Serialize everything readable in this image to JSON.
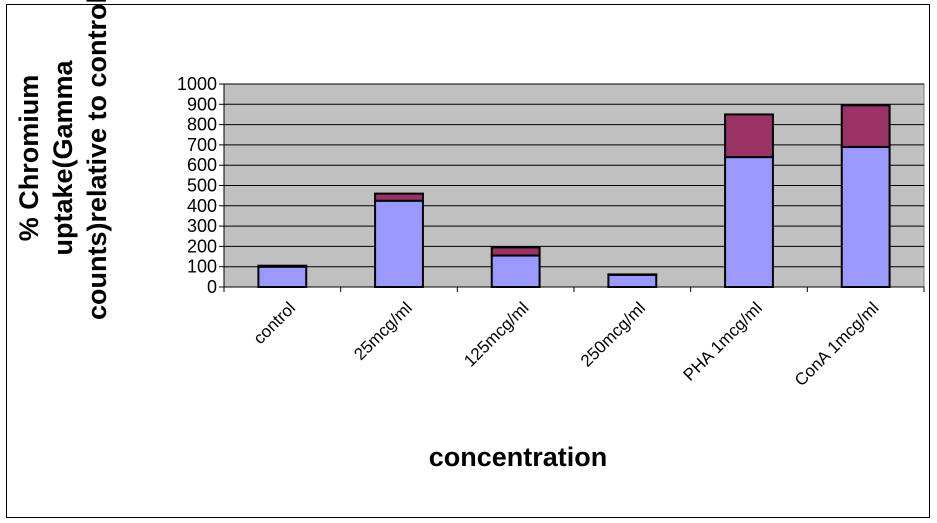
{
  "chart_data": {
    "type": "bar",
    "stacked": true,
    "categories": [
      "control",
      "25mcg/ml",
      "125mcg/ml",
      "250mcg/ml",
      "PHA 1mcg/ml",
      "ConA 1mcg/ml"
    ],
    "series": [
      {
        "values": [
          100,
          425,
          155,
          60,
          640,
          690
        ],
        "color": "#9999ff"
      },
      {
        "values": [
          5,
          35,
          40,
          2,
          210,
          205
        ],
        "color": "#993366"
      }
    ],
    "xlabel": "concentration",
    "ylabel_lines": [
      "% Chromium",
      "uptake(Gamma",
      "counts)relative to control"
    ],
    "ylim": [
      0,
      1000
    ],
    "yticks": [
      0,
      100,
      200,
      300,
      400,
      500,
      600,
      700,
      800,
      900,
      1000
    ],
    "grid": true,
    "plot_background": "#c0c0c0",
    "legend": "none"
  }
}
